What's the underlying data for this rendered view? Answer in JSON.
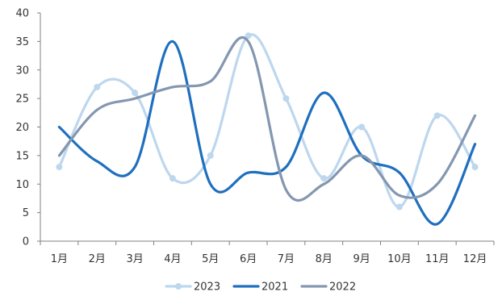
{
  "chart_data": {
    "type": "line",
    "categories": [
      "1月",
      "2月",
      "3月",
      "4月",
      "5月",
      "6月",
      "7月",
      "8月",
      "9月",
      "10月",
      "11月",
      "12月"
    ],
    "ylim": [
      0,
      40
    ],
    "yticks": [
      "0",
      "5",
      "10",
      "15",
      "20",
      "25",
      "30",
      "35",
      "40"
    ],
    "grid": false,
    "smooth": true,
    "legend_position": "bottom",
    "series": [
      {
        "name": "2023",
        "color": "#BDD7EE",
        "markers": true,
        "values": [
          13,
          27,
          26,
          11,
          15,
          36,
          25,
          11,
          20,
          6,
          22,
          13
        ]
      },
      {
        "name": "2021",
        "color": "#1F6FBF",
        "markers": false,
        "values": [
          20,
          14,
          13,
          35,
          10,
          12,
          13,
          26,
          15,
          12,
          3,
          17
        ]
      },
      {
        "name": "2022",
        "color": "#8497B0",
        "markers": false,
        "values": [
          15,
          23,
          25,
          27,
          28,
          35,
          9,
          10,
          15,
          8,
          10,
          22
        ]
      }
    ]
  }
}
